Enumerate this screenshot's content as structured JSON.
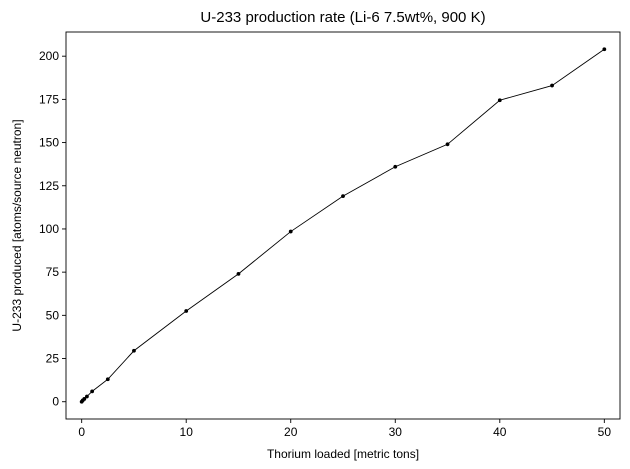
{
  "chart_data": {
    "type": "line",
    "title": "U-233 production rate (Li-6 7.5wt%, 900 K)",
    "xlabel": "Thorium loaded [metric tons]",
    "ylabel": "U-233 produced [atoms/source neutron]",
    "xlim": [
      -1.5,
      51.5
    ],
    "ylim": [
      -10,
      214
    ],
    "xticks": [
      0,
      10,
      20,
      30,
      40,
      50
    ],
    "yticks": [
      0,
      25,
      50,
      75,
      100,
      125,
      150,
      175,
      200
    ],
    "grid": false,
    "legend": "none",
    "series": [
      {
        "color": "#000000",
        "x": [
          0,
          0.1,
          0.25,
          0.5,
          1,
          2.5,
          5,
          10,
          15,
          20,
          25,
          30,
          35,
          40,
          45,
          50
        ],
        "y": [
          0,
          0.8,
          1.6,
          3,
          6,
          13,
          29.5,
          52.5,
          74,
          98.5,
          119,
          136,
          149,
          174.5,
          183,
          204
        ]
      }
    ]
  }
}
